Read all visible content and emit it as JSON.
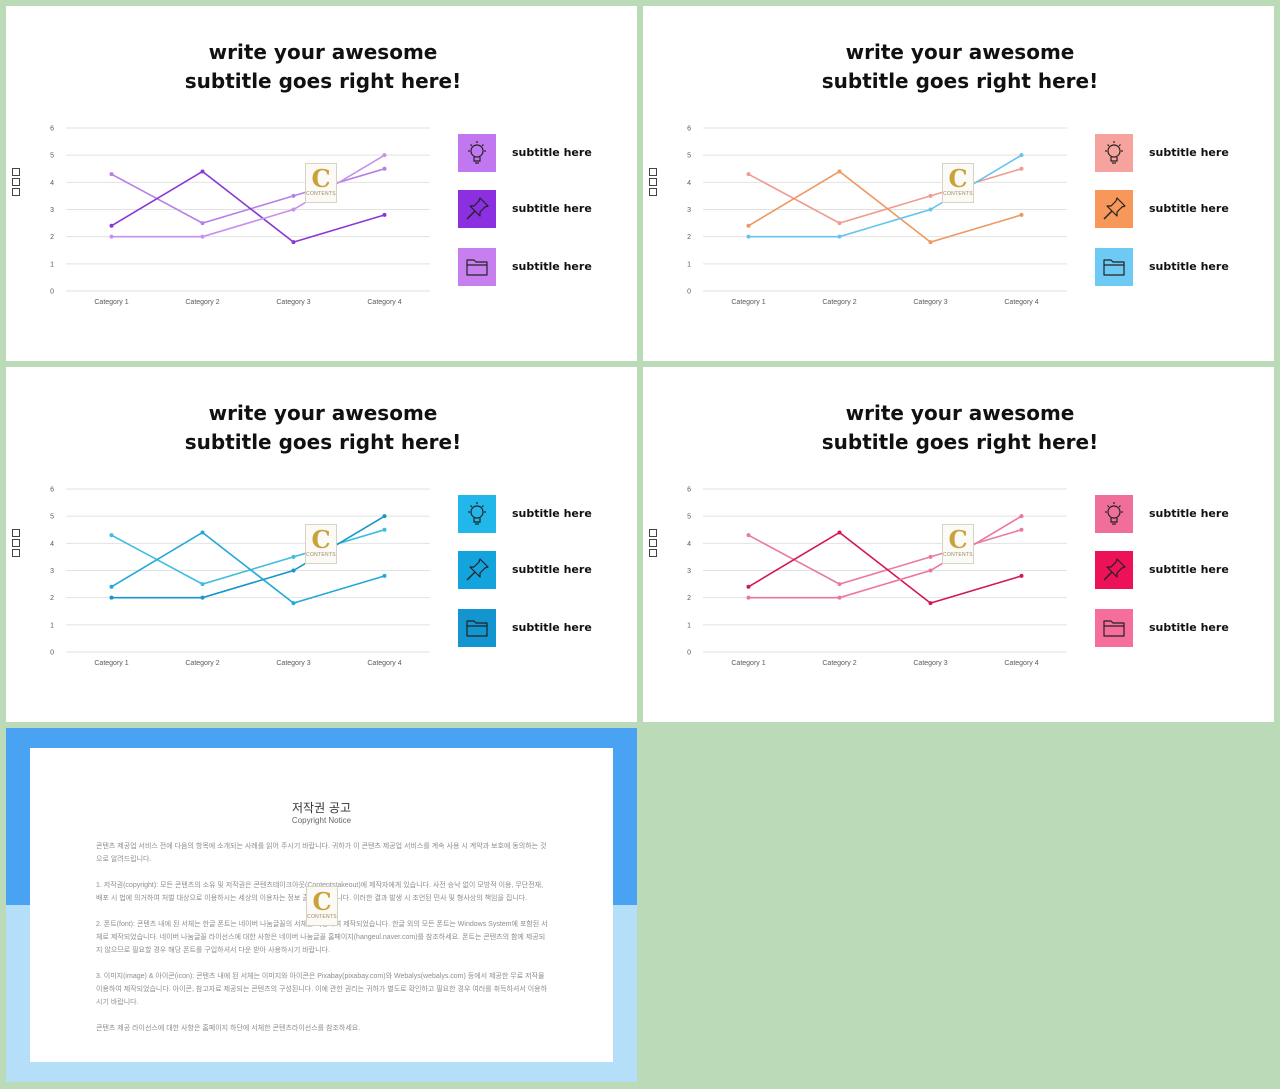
{
  "slides": [
    {
      "title_line1": "write your awesome",
      "title_line2": "subtitle goes right here!",
      "theme": {
        "series": [
          "#b580e6",
          "#8a37d6",
          "#c790ee"
        ],
        "icons": [
          "#c077f0",
          "#8b2fe0",
          "#c77ff0"
        ]
      },
      "legend": [
        "subtitle here",
        "subtitle here",
        "subtitle here"
      ],
      "icon_names": [
        "lightbulb-icon",
        "pushpin-icon",
        "folder-icon"
      ]
    },
    {
      "title_line1": "write your awesome",
      "title_line2": "subtitle goes right here!",
      "theme": {
        "series": [
          "#ee9c92",
          "#ee9760",
          "#66c4ee"
        ],
        "icons": [
          "#f7a39d",
          "#f7985a",
          "#6ccaf5"
        ]
      },
      "legend": [
        "subtitle here",
        "subtitle here",
        "subtitle here"
      ],
      "icon_names": [
        "lightbulb-icon",
        "pushpin-icon",
        "folder-icon"
      ]
    },
    {
      "title_line1": "write your awesome",
      "title_line2": "subtitle goes right here!",
      "theme": {
        "series": [
          "#3fbce0",
          "#22a9d8",
          "#1896cc"
        ],
        "icons": [
          "#22b7ea",
          "#14a4dd",
          "#1396d0"
        ]
      },
      "legend": [
        "subtitle here",
        "subtitle here",
        "subtitle here"
      ],
      "icon_names": [
        "lightbulb-icon",
        "pushpin-icon",
        "folder-icon"
      ]
    },
    {
      "title_line1": "write your awesome",
      "title_line2": "subtitle goes right here!",
      "theme": {
        "series": [
          "#ea7aa2",
          "#d21852",
          "#ee74a2"
        ],
        "icons": [
          "#f06f9a",
          "#ed1257",
          "#f56e9c"
        ]
      },
      "legend": [
        "subtitle here",
        "subtitle here",
        "subtitle here"
      ],
      "icon_names": [
        "lightbulb-icon",
        "pushpin-icon",
        "folder-icon"
      ]
    }
  ],
  "chart_data": {
    "type": "line",
    "categories": [
      "Category 1",
      "Category 2",
      "Category 3",
      "Category 4"
    ],
    "series": [
      {
        "values": [
          4.3,
          2.5,
          3.5,
          4.5
        ]
      },
      {
        "values": [
          2.4,
          4.4,
          1.8,
          2.8
        ]
      },
      {
        "values": [
          2.0,
          2.0,
          3.0,
          5.0
        ]
      }
    ],
    "y_ticks": [
      "0",
      "1",
      "2",
      "3",
      "4",
      "5",
      "6"
    ],
    "ylim": [
      0,
      6
    ],
    "grid": true,
    "legend": "none"
  },
  "watermark": {
    "letter": "C",
    "text": "CONTENTS"
  },
  "copyright": {
    "title": "저작권 공고",
    "subtitle": "Copyright Notice",
    "paragraphs": [
      "콘텐츠 제공업 서비스 전에 다음의 항목에 소개되는 사례를 읽어 주시기 바랍니다. 귀하가 이 콘텐츠 제공업 서비스를 계속 사용 시 계약과 보호에 동의하는 것으로 알려드립니다.",
      "1. 저작권(copyright): 모든 콘텐츠의 소유 및 저작권은 콘텐츠테이크아웃(Contentstakeout)에 제작자에게 있습니다. 사전 승낙 없이 모방적 이용, 무단전재, 배포 시 법에 의거하여 처벌 대상으로 이용하시는 세상의 이용자는 정보 출처에 있습니다. 이러한 결과 발생 시 조언된 민사 및 형사상의 책임을 집니다.",
      "2. 폰트(font): 콘텐츠 내에 된 서체는 한글 폰트는 네이버 나눔글꼴의 서체를 이용하여 제작되었습니다. 한글 외의 모든 폰트는 Windows System에 포함된 서체로 제작되었습니다. 네이버 나눔글꼴 라이선스에 대한 사항은 네이버 나눔글꼴 홈페이지(hangeul.naver.com)를 참조하세요. 폰트는 콘텐츠의 함께 제공되지 않으므로 필요할 경우 해당 폰트를 구입하셔서 다운 받아 사용하시기 바랍니다.",
      "3. 이미지(image) & 아이콘(icon): 콘텐츠 내에 된 서체는 이미지와 아이콘은 Pixabay(pixabay.com)와 Webalys(webalys.com) 등에서 제공한 무료 저작물 이용하여 제작되었습니다. 아이콘, 참고자료 제공되는 콘텐츠의 구성된니다. 이에 관한 권리는 귀하가 별도로 확인하고 필요한 경우 여러를 취득하셔서 이용하시기 바랍니다.",
      "콘텐츠 제공 라이선스에 대한 사항은 홈페이지 하단에 서체한 콘텐츠라이선스를 참조하세요."
    ]
  }
}
